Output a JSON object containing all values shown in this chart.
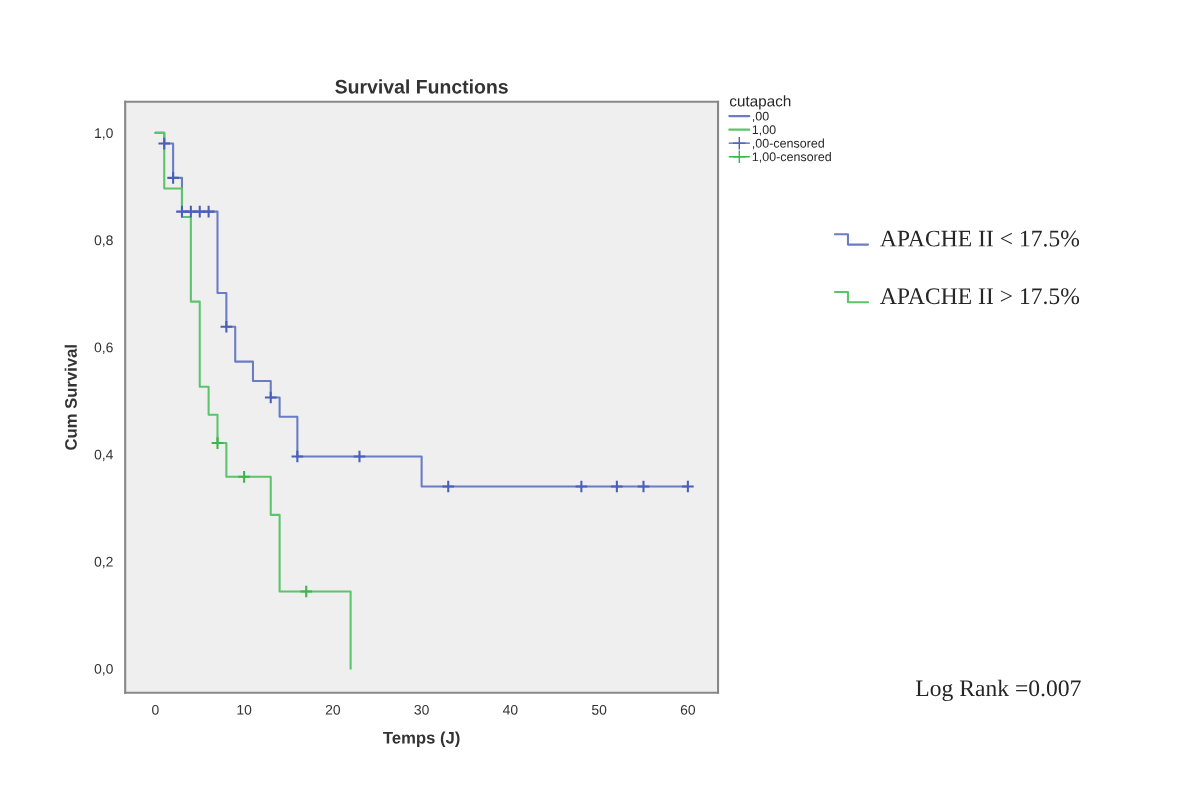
{
  "chart_data": {
    "type": "step",
    "title": "Survival Functions",
    "xlabel": "Temps (J)",
    "ylabel": "Cum Survival",
    "legend_title": "cutapach",
    "legend": "top right",
    "series": [
      {
        "name": ",00",
        "color": "#6a7cc4",
        "x": [
          0,
          1,
          2,
          3,
          7,
          8,
          9,
          11,
          13,
          14,
          16,
          30,
          60
        ],
        "values": [
          1.0,
          0.98,
          0.916,
          0.853,
          0.701,
          0.638,
          0.573,
          0.537,
          0.506,
          0.47,
          0.396,
          0.34,
          0.34
        ]
      },
      {
        "name": "1,00",
        "color": "#5cc46a",
        "x": [
          0,
          1,
          3,
          4,
          5,
          6,
          7,
          8,
          13,
          14,
          22
        ],
        "values": [
          1.0,
          0.896,
          0.843,
          0.685,
          0.526,
          0.474,
          0.421,
          0.358,
          0.287,
          0.144,
          0.0
        ]
      },
      {
        "name": ",00-censored",
        "type": "scatter",
        "marker": "cross",
        "color": "#4a5fb8",
        "x": [
          1,
          2,
          3,
          4,
          5,
          6,
          8,
          13,
          16,
          23,
          33,
          48,
          52,
          55,
          60
        ],
        "values": [
          0.98,
          0.916,
          0.853,
          0.853,
          0.853,
          0.853,
          0.638,
          0.506,
          0.396,
          0.396,
          0.34,
          0.34,
          0.34,
          0.34,
          0.34
        ]
      },
      {
        "name": "1,00-censored",
        "type": "scatter",
        "marker": "cross",
        "color": "#3cb54a",
        "x": [
          7,
          10,
          17
        ],
        "values": [
          0.421,
          0.358,
          0.144
        ]
      }
    ],
    "xlim": [
      -3.4,
      63.4
    ],
    "xticks": [
      0,
      10,
      20,
      30,
      40,
      50,
      60
    ],
    "ylim": [
      -0.045,
      1.058
    ],
    "yticks": [
      {
        "value": 0.0,
        "label": "0,0"
      },
      {
        "value": 0.2,
        "label": "0,2"
      },
      {
        "value": 0.4,
        "label": "0,4"
      },
      {
        "value": 0.6,
        "label": "0,6"
      },
      {
        "value": 0.8,
        "label": "0,8"
      },
      {
        "value": 1.0,
        "label": "1,0"
      }
    ],
    "grid": false,
    "annotations": [
      "APACHE II < 17.5%",
      "APACHE II > 17.5%",
      "Log Rank =0.007"
    ]
  }
}
